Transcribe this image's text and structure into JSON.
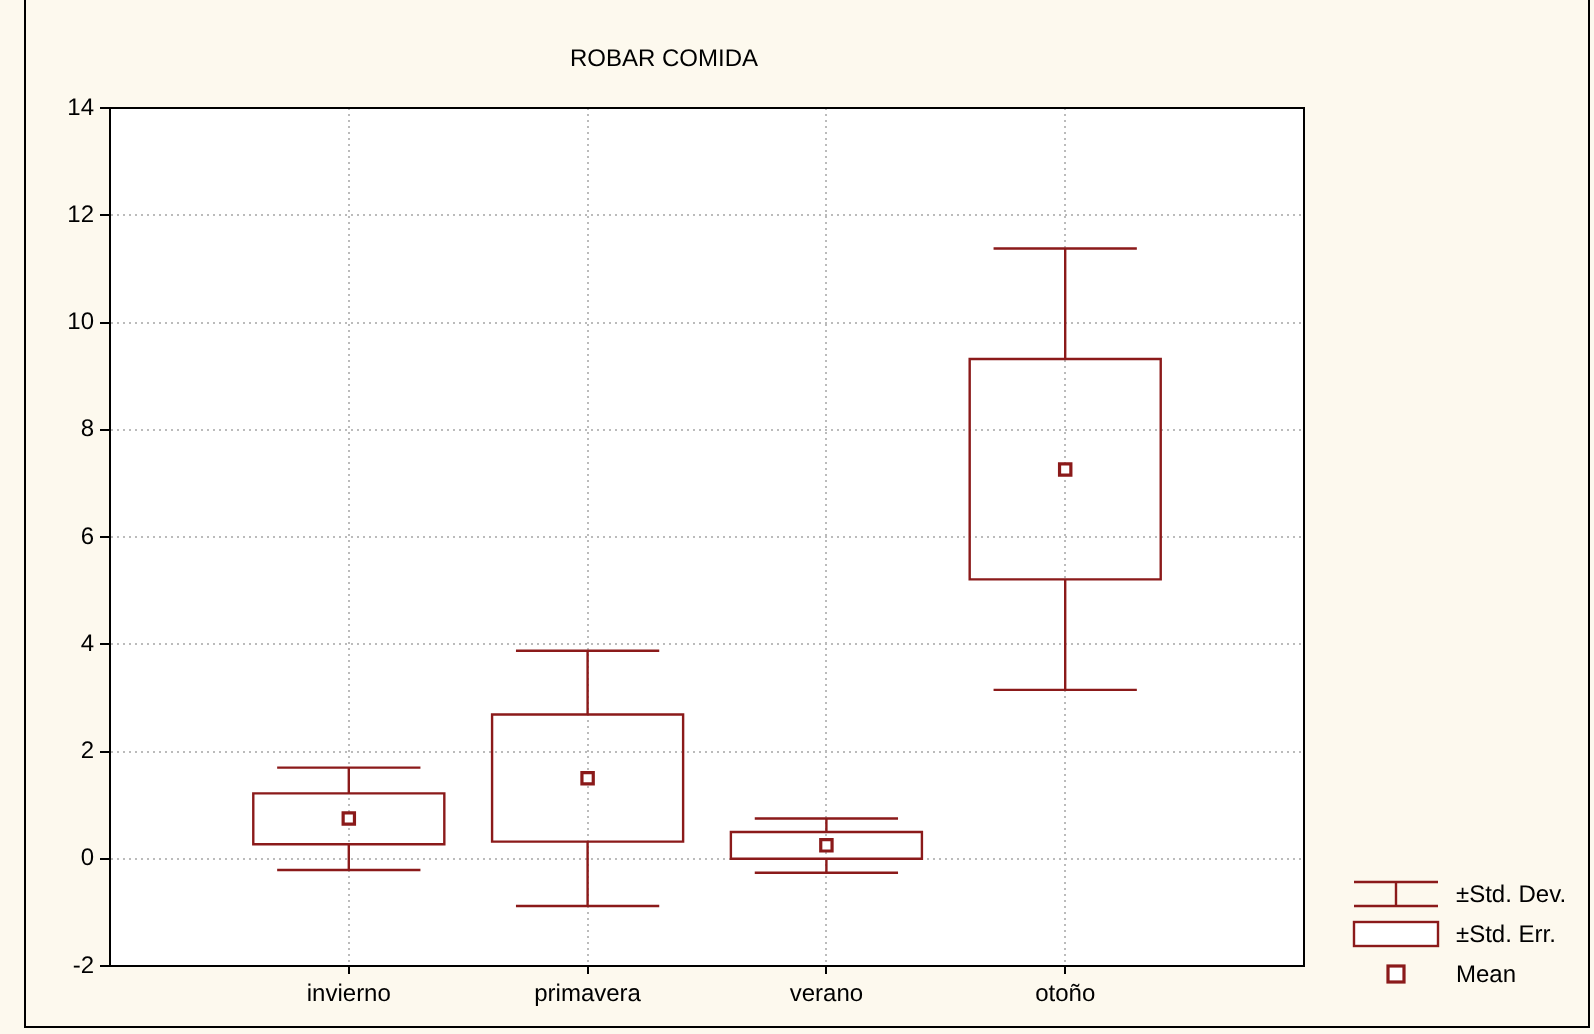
{
  "chart_data": {
    "type": "box",
    "title": "ROBAR COMIDA",
    "categories": [
      "invierno",
      "primavera",
      "verano",
      "otoño"
    ],
    "series": [
      {
        "color": "#8b1a1a",
        "boxes": [
          {
            "low": -0.21,
            "q1": 0.27,
            "median": null,
            "q3": 1.22,
            "high": 1.7,
            "mean": 0.75
          },
          {
            "low": -0.88,
            "q1": 0.32,
            "median": null,
            "q3": 2.69,
            "high": 3.88,
            "mean": 1.5
          },
          {
            "low": -0.26,
            "q1": 0,
            "median": null,
            "q3": 0.5,
            "high": 0.75,
            "mean": 0.25
          },
          {
            "low": 3.15,
            "q1": 5.21,
            "median": null,
            "q3": 9.32,
            "high": 11.38,
            "mean": 7.26
          }
        ]
      }
    ],
    "ylim": [
      -2,
      14
    ],
    "yticks": [
      -2,
      0,
      2,
      4,
      6,
      8,
      10,
      12,
      14
    ],
    "grid": true,
    "marker": "square",
    "annotations": [
      "±Std. Dev.",
      "±Std. Err.",
      "Mean"
    ]
  }
}
